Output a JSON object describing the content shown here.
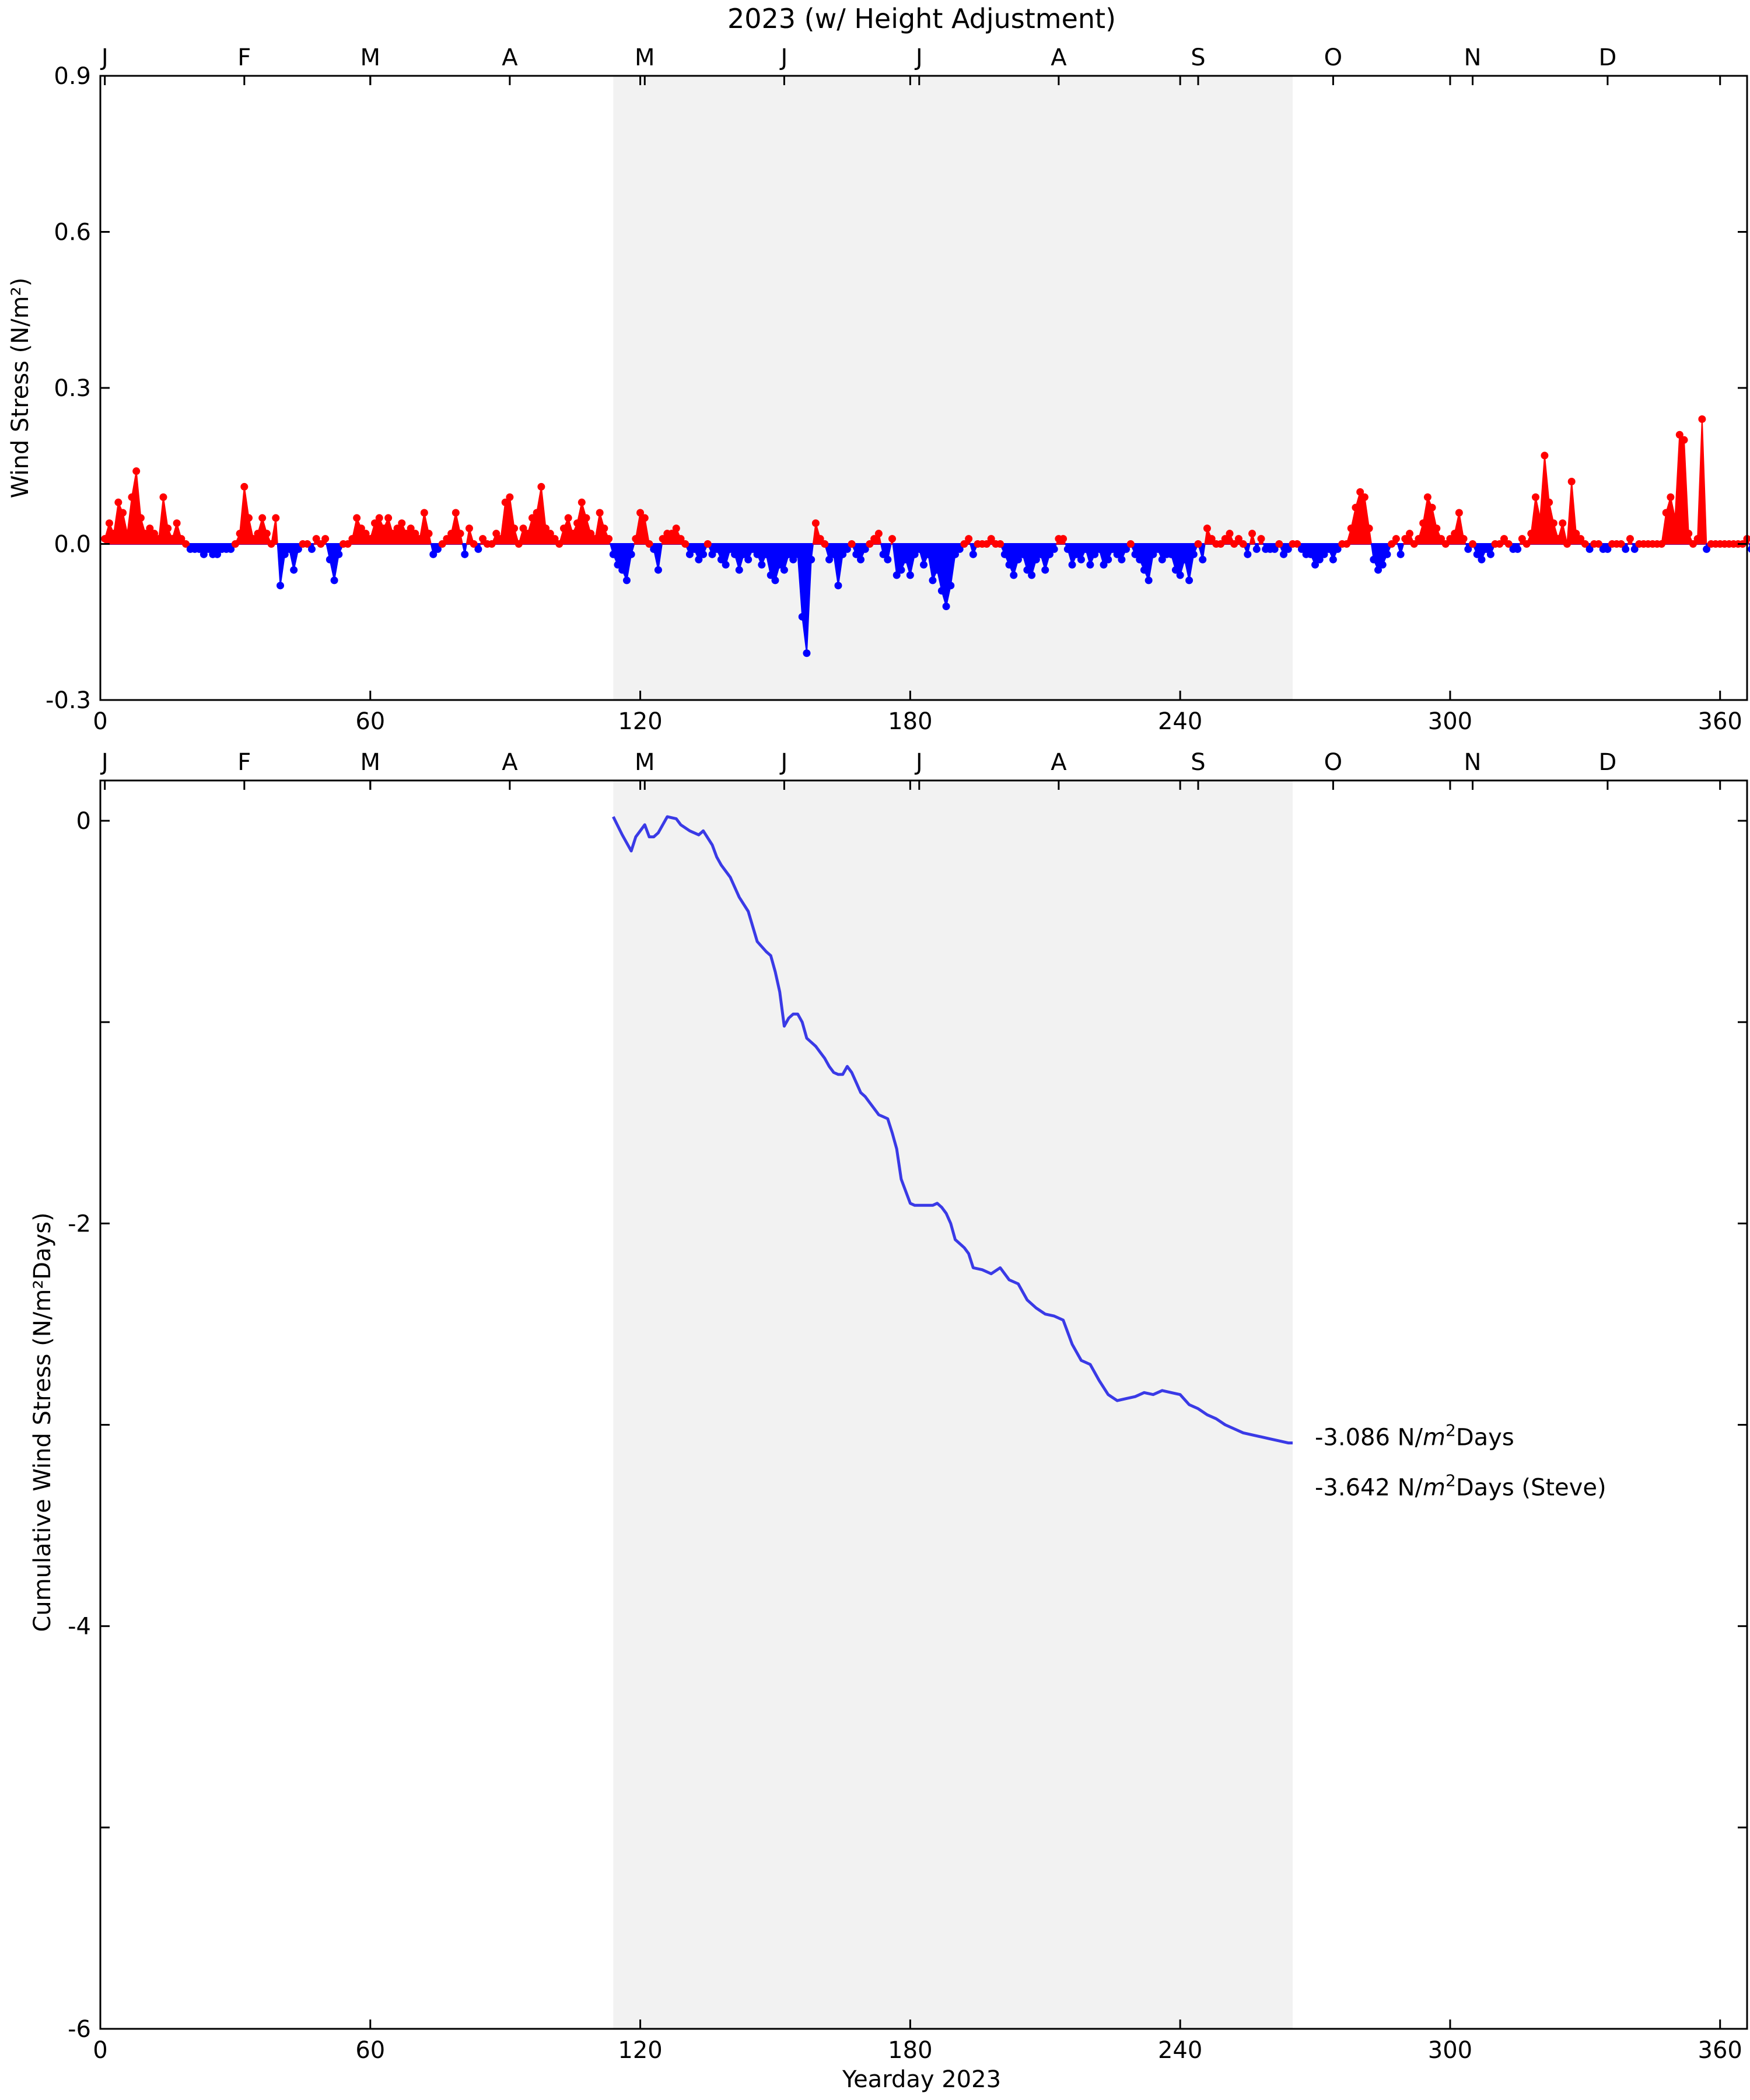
{
  "figure": {
    "title": "2023 (w/ Height Adjustment)"
  },
  "colors": {
    "positive": "#ff0000",
    "negative": "#0000ff",
    "cumulative_line": "#3a3ae6",
    "shade": "#f2f2f2"
  },
  "month_labels": [
    "J",
    "F",
    "M",
    "A",
    "M",
    "J",
    "J",
    "A",
    "S",
    "O",
    "N",
    "D"
  ],
  "month_start_days": [
    1,
    32,
    60,
    91,
    121,
    152,
    182,
    213,
    244,
    274,
    305,
    335
  ],
  "shaded_period": {
    "start_day": 114,
    "end_day": 265
  },
  "chart_data": [
    {
      "type": "area",
      "name": "daily-wind-stress",
      "title": "2023 (w/ Height Adjustment)",
      "xlabel": "",
      "ylabel": "Wind Stress (N/m²)",
      "xlim": [
        0,
        366
      ],
      "ylim": [
        -0.3,
        0.9
      ],
      "xticks": [
        0,
        60,
        120,
        180,
        240,
        300,
        360
      ],
      "yticks": [
        -0.3,
        0.0,
        0.3,
        0.6,
        0.9
      ],
      "ytick_labels": [
        "-0.3",
        "0.0",
        "0.3",
        "0.6",
        "0.9"
      ],
      "y_start_day": 1,
      "y": [
        0.01,
        0.04,
        0.02,
        0.08,
        0.06,
        0.02,
        0.09,
        0.14,
        0.05,
        0.02,
        0.03,
        0.02,
        0.01,
        0.09,
        0.03,
        0.01,
        0.04,
        0.01,
        0.0,
        -0.01,
        -0.01,
        -0.01,
        -0.02,
        -0.01,
        -0.02,
        -0.02,
        -0.01,
        -0.01,
        -0.01,
        0.0,
        0.02,
        0.11,
        0.05,
        0.01,
        0.02,
        0.05,
        0.02,
        0.0,
        0.05,
        -0.08,
        -0.02,
        -0.01,
        -0.05,
        -0.01,
        0.0,
        0.0,
        -0.01,
        0.01,
        0.0,
        0.01,
        -0.03,
        -0.07,
        -0.02,
        0.0,
        0.0,
        0.01,
        0.05,
        0.03,
        0.02,
        0.01,
        0.04,
        0.05,
        0.03,
        0.05,
        0.02,
        0.03,
        0.04,
        0.02,
        0.03,
        0.02,
        0.01,
        0.06,
        0.02,
        -0.02,
        -0.01,
        0.0,
        0.01,
        0.02,
        0.06,
        0.02,
        -0.02,
        0.03,
        0.0,
        -0.01,
        0.01,
        0.0,
        0.0,
        0.02,
        0.01,
        0.08,
        0.09,
        0.03,
        0.0,
        0.03,
        0.02,
        0.05,
        0.06,
        0.11,
        0.03,
        0.02,
        0.01,
        0.0,
        0.03,
        0.05,
        0.02,
        0.04,
        0.08,
        0.05,
        0.02,
        0.01,
        0.06,
        0.03,
        0.01,
        -0.02,
        -0.04,
        -0.05,
        -0.07,
        -0.02,
        0.01,
        0.06,
        0.05,
        0.0,
        -0.01,
        -0.05,
        0.01,
        0.02,
        0.02,
        0.03,
        0.01,
        0.0,
        -0.02,
        -0.01,
        -0.03,
        -0.02,
        0.0,
        -0.02,
        -0.01,
        -0.03,
        -0.04,
        -0.01,
        -0.02,
        -0.05,
        -0.02,
        -0.03,
        -0.01,
        -0.02,
        -0.04,
        -0.02,
        -0.06,
        -0.07,
        -0.04,
        -0.05,
        -0.02,
        -0.03,
        -0.02,
        -0.14,
        -0.21,
        -0.03,
        0.04,
        0.01,
        0.0,
        -0.03,
        -0.02,
        -0.08,
        -0.02,
        -0.01,
        0.0,
        -0.02,
        -0.03,
        -0.01,
        0.0,
        0.01,
        0.02,
        -0.02,
        -0.03,
        0.01,
        -0.06,
        -0.05,
        -0.03,
        -0.06,
        -0.02,
        -0.01,
        -0.04,
        -0.02,
        -0.07,
        -0.05,
        -0.09,
        -0.12,
        -0.08,
        -0.02,
        -0.01,
        0.0,
        0.01,
        -0.02,
        0.0,
        0.0,
        0.0,
        0.01,
        0.0,
        0.0,
        -0.02,
        -0.04,
        -0.06,
        -0.03,
        -0.02,
        -0.05,
        -0.06,
        -0.03,
        -0.02,
        -0.05,
        -0.02,
        -0.01,
        0.01,
        0.01,
        -0.01,
        -0.04,
        -0.02,
        -0.03,
        -0.01,
        -0.04,
        -0.02,
        -0.01,
        -0.04,
        -0.03,
        -0.01,
        -0.02,
        -0.03,
        -0.01,
        0.0,
        -0.02,
        -0.03,
        -0.05,
        -0.07,
        -0.02,
        -0.01,
        -0.03,
        -0.02,
        -0.02,
        -0.05,
        -0.06,
        -0.03,
        -0.07,
        -0.02,
        0.0,
        -0.03,
        0.03,
        0.01,
        0.0,
        0.0,
        0.01,
        0.02,
        0.0,
        0.01,
        0.0,
        -0.02,
        0.02,
        -0.01,
        0.01,
        -0.01,
        -0.01,
        -0.01,
        0.0,
        -0.02,
        -0.01,
        0.0,
        0.0,
        -0.01,
        -0.02,
        -0.02,
        -0.04,
        -0.03,
        -0.02,
        -0.01,
        -0.03,
        -0.01,
        0.0,
        0.0,
        0.03,
        0.07,
        0.1,
        0.09,
        0.03,
        -0.03,
        -0.05,
        -0.04,
        -0.02,
        0.0,
        0.01,
        -0.02,
        0.01,
        0.02,
        0.0,
        0.01,
        0.04,
        0.09,
        0.07,
        0.03,
        0.01,
        0.0,
        0.01,
        0.02,
        0.06,
        0.01,
        -0.01,
        0.0,
        -0.02,
        -0.03,
        -0.01,
        -0.02,
        0.0,
        0.0,
        0.01,
        0.0,
        -0.01,
        -0.01,
        0.01,
        0.0,
        0.02,
        0.09,
        0.05,
        0.17,
        0.08,
        0.04,
        0.01,
        0.04,
        0.0,
        0.12,
        0.02,
        0.01,
        0.0,
        -0.01,
        0.0,
        0.0,
        -0.01,
        -0.01,
        0.0,
        0.0,
        0.0,
        -0.01,
        0.01,
        -0.01,
        0.0,
        0.0,
        0.0,
        0.0,
        0.0,
        0.0,
        0.06,
        0.09,
        0.05,
        0.21,
        0.2,
        0.02,
        0.0,
        0.01,
        0.24,
        -0.01,
        0.0,
        0.0,
        0.0,
        0.0,
        0.0,
        0.0,
        0.0,
        0.0,
        0.01,
        -0.01,
        -0.01,
        0.0,
        0.03,
        0.05,
        0.01,
        0.02,
        0.01,
        0.02,
        0.0
      ]
    },
    {
      "type": "line",
      "name": "cumulative-wind-stress",
      "title": "",
      "xlabel": "Yearday 2023",
      "ylabel": "Cumulative Wind Stress (N/m²Days)",
      "xlim": [
        0,
        366
      ],
      "ylim": [
        -6,
        0.2
      ],
      "xticks": [
        0,
        60,
        120,
        180,
        240,
        300,
        360
      ],
      "yticks": [
        -6,
        -4,
        -2,
        0
      ],
      "minor_yticks": [
        -5,
        -3,
        -1
      ],
      "x": [
        114,
        116,
        118,
        119,
        121,
        122,
        123,
        124,
        126,
        128,
        129,
        131,
        133,
        134,
        136,
        137,
        138,
        140,
        142,
        144,
        146,
        148,
        149,
        150,
        151,
        152,
        153,
        154,
        155,
        156,
        157,
        158,
        159,
        160,
        161,
        162,
        163,
        164,
        165,
        166,
        167,
        168,
        169,
        170,
        171,
        172,
        173,
        174,
        175,
        176,
        177,
        178,
        180,
        181,
        182,
        183,
        184,
        185,
        186,
        187,
        188,
        189,
        190,
        191,
        192,
        193,
        194,
        196,
        198,
        200,
        202,
        204,
        206,
        208,
        210,
        212,
        214,
        216,
        218,
        220,
        222,
        224,
        226,
        228,
        230,
        232,
        234,
        236,
        238,
        240,
        242,
        244,
        246,
        248,
        250,
        252,
        254,
        256,
        258,
        260,
        262,
        264,
        265
      ],
      "y": [
        0.02,
        -0.07,
        -0.15,
        -0.08,
        -0.02,
        -0.08,
        -0.08,
        -0.06,
        0.02,
        0.01,
        -0.02,
        -0.05,
        -0.07,
        -0.05,
        -0.12,
        -0.18,
        -0.22,
        -0.28,
        -0.38,
        -0.45,
        -0.6,
        -0.65,
        -0.67,
        -0.75,
        -0.85,
        -1.02,
        -0.98,
        -0.96,
        -0.96,
        -1.0,
        -1.08,
        -1.1,
        -1.12,
        -1.15,
        -1.18,
        -1.22,
        -1.25,
        -1.26,
        -1.26,
        -1.22,
        -1.25,
        -1.3,
        -1.35,
        -1.37,
        -1.4,
        -1.43,
        -1.46,
        -1.47,
        -1.48,
        -1.55,
        -1.63,
        -1.78,
        -1.9,
        -1.91,
        -1.91,
        -1.91,
        -1.91,
        -1.91,
        -1.9,
        -1.92,
        -1.95,
        -2.0,
        -2.08,
        -2.1,
        -2.12,
        -2.15,
        -2.22,
        -2.23,
        -2.25,
        -2.22,
        -2.28,
        -2.3,
        -2.38,
        -2.42,
        -2.45,
        -2.46,
        -2.48,
        -2.6,
        -2.68,
        -2.7,
        -2.78,
        -2.85,
        -2.88,
        -2.87,
        -2.86,
        -2.84,
        -2.85,
        -2.83,
        -2.84,
        -2.85,
        -2.9,
        -2.92,
        -2.95,
        -2.97,
        -3.0,
        -3.02,
        -3.04,
        -3.05,
        -3.06,
        -3.07,
        -3.08,
        -3.09,
        -3.09
      ],
      "annotations": [
        {
          "pre": "-3.086 N/",
          "em": "m",
          "sup": "2",
          "post": "Days"
        },
        {
          "pre": "-3.642 N/",
          "em": "m",
          "sup": "2",
          "post": "Days (Steve)"
        }
      ]
    }
  ]
}
